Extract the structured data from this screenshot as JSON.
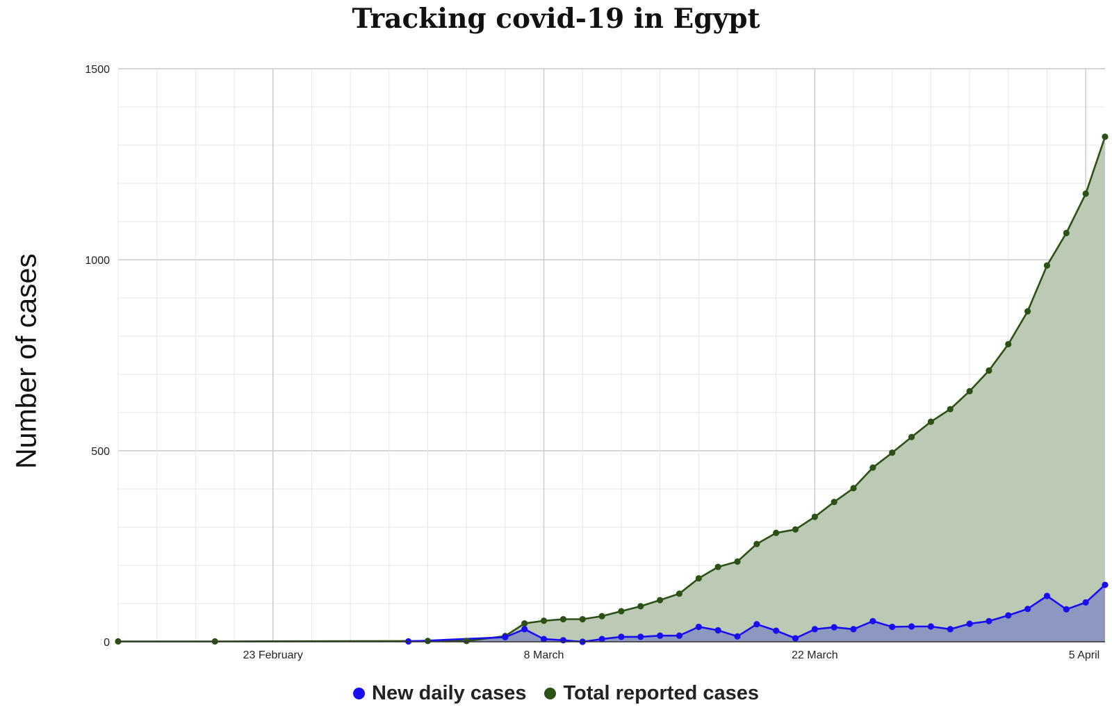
{
  "chart_data": {
    "type": "area",
    "title": "Tracking covid-19 in Egypt",
    "xlabel": "",
    "ylabel": "Number of cases",
    "ylim": [
      0,
      1500
    ],
    "xlim": [
      "2020-02-15",
      "2020-04-06"
    ],
    "y_ticks": [
      0,
      500,
      1000,
      1500
    ],
    "x_ticks": [
      {
        "date": "2020-02-23",
        "label": "23 February"
      },
      {
        "date": "2020-03-08",
        "label": "8 March"
      },
      {
        "date": "2020-03-22",
        "label": "22 March"
      },
      {
        "date": "2020-04-05",
        "label": "5 April"
      }
    ],
    "grid": true,
    "legend_position": "bottom-center",
    "series": [
      {
        "name": "New daily cases",
        "color": "#1a0df0",
        "fill": "#8a96c2",
        "points": [
          [
            "2020-03-01",
            1
          ],
          [
            "2020-03-06",
            12
          ],
          [
            "2020-03-07",
            33
          ],
          [
            "2020-03-08",
            7
          ],
          [
            "2020-03-09",
            4
          ],
          [
            "2020-03-10",
            0
          ],
          [
            "2020-03-11",
            7
          ],
          [
            "2020-03-12",
            13
          ],
          [
            "2020-03-13",
            13
          ],
          [
            "2020-03-14",
            16
          ],
          [
            "2020-03-15",
            16
          ],
          [
            "2020-03-16",
            39
          ],
          [
            "2020-03-17",
            30
          ],
          [
            "2020-03-18",
            14
          ],
          [
            "2020-03-19",
            46
          ],
          [
            "2020-03-20",
            29
          ],
          [
            "2020-03-21",
            9
          ],
          [
            "2020-03-22",
            33
          ],
          [
            "2020-03-23",
            38
          ],
          [
            "2020-03-24",
            33
          ],
          [
            "2020-03-25",
            54
          ],
          [
            "2020-03-26",
            39
          ],
          [
            "2020-03-27",
            40
          ],
          [
            "2020-03-28",
            40
          ],
          [
            "2020-03-29",
            33
          ],
          [
            "2020-03-30",
            47
          ],
          [
            "2020-03-31",
            54
          ],
          [
            "2020-04-01",
            69
          ],
          [
            "2020-04-02",
            86
          ],
          [
            "2020-04-03",
            120
          ],
          [
            "2020-04-04",
            85
          ],
          [
            "2020-04-05",
            103
          ],
          [
            "2020-04-06",
            149
          ]
        ]
      },
      {
        "name": "Total reported cases",
        "color": "#2d5016",
        "fill": "#bcc9b5",
        "points": [
          [
            "2020-02-15",
            1
          ],
          [
            "2020-02-20",
            1
          ],
          [
            "2020-03-02",
            2
          ],
          [
            "2020-03-04",
            2
          ],
          [
            "2020-03-06",
            15
          ],
          [
            "2020-03-07",
            48
          ],
          [
            "2020-03-08",
            55
          ],
          [
            "2020-03-09",
            59
          ],
          [
            "2020-03-10",
            59
          ],
          [
            "2020-03-11",
            67
          ],
          [
            "2020-03-12",
            80
          ],
          [
            "2020-03-13",
            93
          ],
          [
            "2020-03-14",
            109
          ],
          [
            "2020-03-15",
            126
          ],
          [
            "2020-03-16",
            166
          ],
          [
            "2020-03-17",
            196
          ],
          [
            "2020-03-18",
            210
          ],
          [
            "2020-03-19",
            256
          ],
          [
            "2020-03-20",
            285
          ],
          [
            "2020-03-21",
            294
          ],
          [
            "2020-03-22",
            327
          ],
          [
            "2020-03-23",
            366
          ],
          [
            "2020-03-24",
            402
          ],
          [
            "2020-03-25",
            456
          ],
          [
            "2020-03-26",
            495
          ],
          [
            "2020-03-27",
            536
          ],
          [
            "2020-03-28",
            576
          ],
          [
            "2020-03-29",
            609
          ],
          [
            "2020-03-30",
            656
          ],
          [
            "2020-03-31",
            710
          ],
          [
            "2020-04-01",
            779
          ],
          [
            "2020-04-02",
            865
          ],
          [
            "2020-04-03",
            985
          ],
          [
            "2020-04-04",
            1070
          ],
          [
            "2020-04-05",
            1173
          ],
          [
            "2020-04-06",
            1322
          ]
        ]
      }
    ]
  }
}
